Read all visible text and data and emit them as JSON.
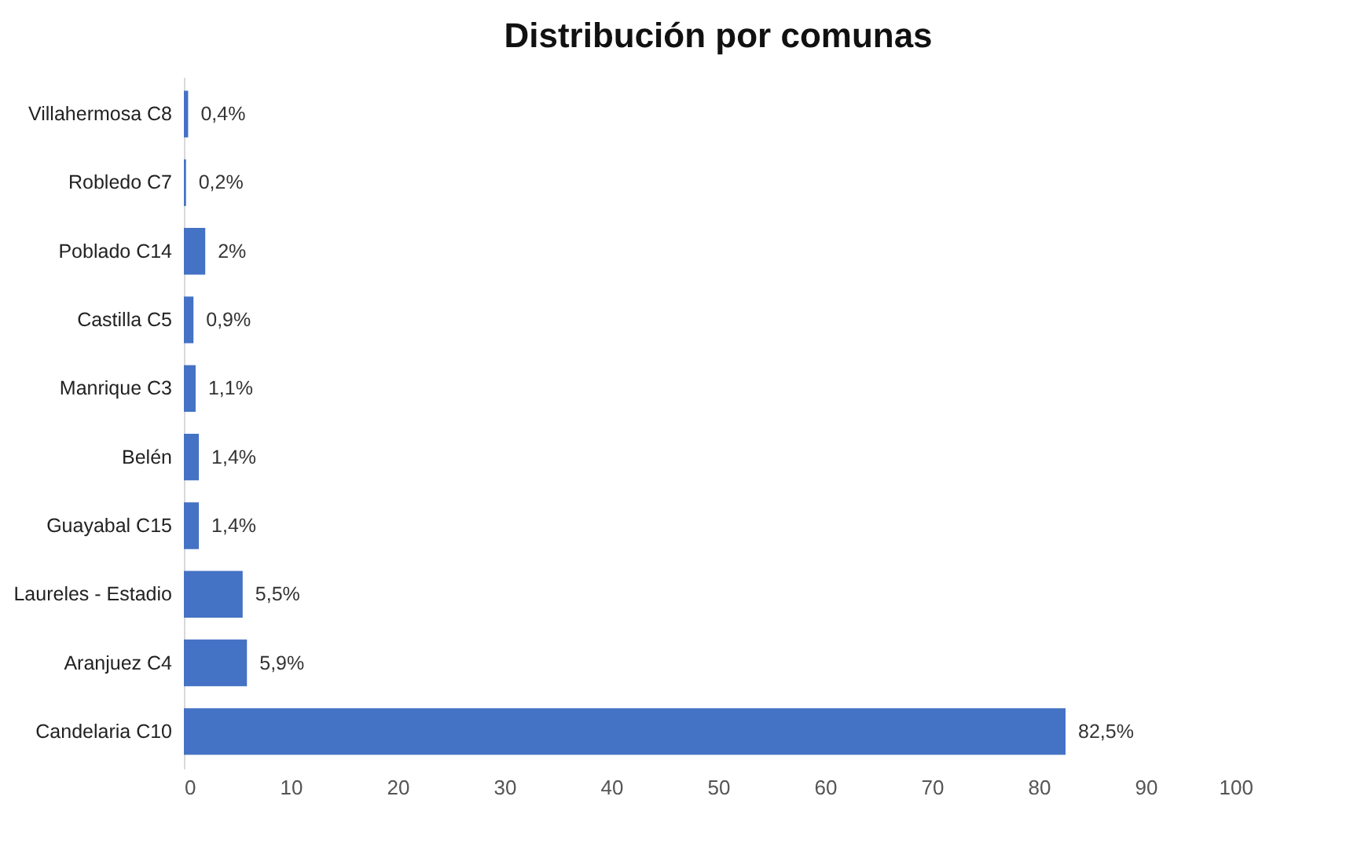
{
  "chart_data": {
    "type": "bar",
    "title": "Distribución por comunas",
    "orientation": "horizontal",
    "categories": [
      "Villahermosa C8",
      "Robledo C7",
      "Poblado C14",
      "Castilla C5",
      "Manrique C3",
      "Belén",
      "Guayabal C15",
      "Laureles - Estadio",
      "Aranjuez C4",
      "Candelaria C10"
    ],
    "values": [
      0.4,
      0.2,
      2,
      0.9,
      1.1,
      1.4,
      1.4,
      5.5,
      5.9,
      82.5
    ],
    "value_labels": [
      "0,4%",
      "0,2%",
      "2%",
      "0,9%",
      "1,1%",
      "1,4%",
      "1,4%",
      "5,5%",
      "5,9%",
      "82,5%"
    ],
    "color": "#4472c4",
    "xlim": [
      0,
      100
    ],
    "xticks": [
      0,
      10,
      20,
      30,
      40,
      50,
      60,
      70,
      80,
      90,
      100
    ],
    "grid": false
  }
}
